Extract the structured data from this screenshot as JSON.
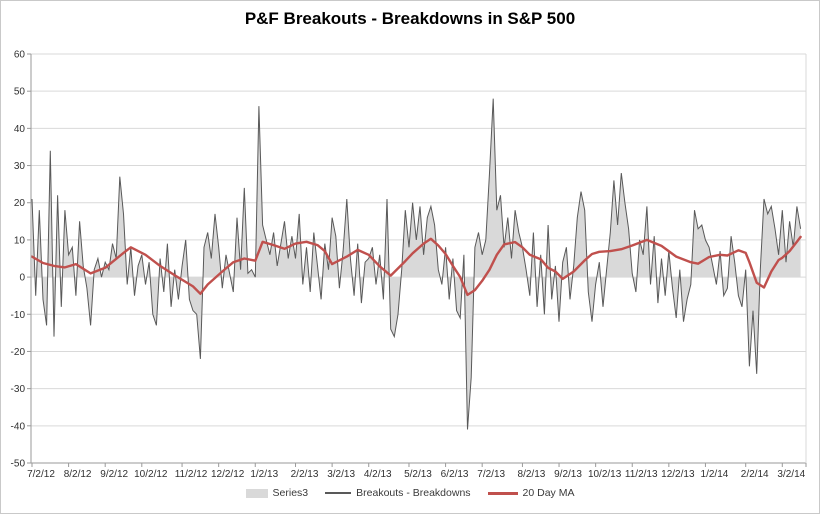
{
  "chart_data": {
    "type": "area+line",
    "title": "P&F Breakouts - Breakdowns in S&P 500",
    "xlabel": "",
    "ylabel": "",
    "ylim": [
      -50,
      60
    ],
    "y_ticks": [
      60,
      50,
      40,
      30,
      20,
      10,
      0,
      -10,
      -20,
      -30,
      -40,
      -50
    ],
    "grid": "horizontal",
    "legend_position": "bottom",
    "series_meta": [
      {
        "name": "Series3",
        "type": "area",
        "color": "#d9d9d9"
      },
      {
        "name": "Breakouts - Breakdowns",
        "type": "line",
        "color": "#595959",
        "width": 1
      },
      {
        "name": "20 Day MA",
        "type": "line",
        "color": "#c0504d",
        "width": 2.4
      }
    ],
    "x_tick_labels": [
      "7/2/12",
      "8/2/12",
      "9/2/12",
      "10/2/12",
      "11/2/12",
      "12/2/12",
      "1/2/13",
      "2/2/13",
      "3/2/13",
      "4/2/13",
      "5/2/13",
      "6/2/13",
      "7/2/13",
      "8/2/13",
      "9/2/13",
      "10/2/13",
      "11/2/13",
      "12/2/13",
      "1/2/14",
      "2/2/14",
      "3/2/14"
    ],
    "months": [
      {
        "label": "7/2/12",
        "values": [
          21,
          -5,
          18,
          -6,
          -13,
          34,
          -16,
          22,
          -8,
          18
        ]
      },
      {
        "label": "8/2/12",
        "values": [
          6,
          8,
          -5,
          15,
          3,
          -3,
          -13,
          2,
          5,
          0
        ]
      },
      {
        "label": "9/2/12",
        "values": [
          4,
          2,
          9,
          5,
          27,
          17,
          -2,
          8,
          -5,
          3
        ]
      },
      {
        "label": "10/2/12",
        "values": [
          6,
          -2,
          4,
          -10,
          -13,
          5,
          -4,
          9,
          -8,
          2,
          -6
        ]
      },
      {
        "label": "11/2/12",
        "values": [
          3,
          10,
          -6,
          -9,
          -10,
          -22,
          8,
          12,
          5,
          17
        ]
      },
      {
        "label": "12/2/12",
        "values": [
          8,
          -3,
          6,
          1,
          -4,
          16,
          2,
          24,
          1,
          2
        ]
      },
      {
        "label": "1/2/13",
        "values": [
          0,
          46,
          14,
          10,
          6,
          12,
          3,
          9,
          15,
          5,
          11
        ]
      },
      {
        "label": "2/2/13",
        "values": [
          5,
          17,
          -2,
          8,
          -4,
          12,
          3,
          -6,
          9,
          2
        ]
      },
      {
        "label": "3/2/13",
        "values": [
          16,
          11,
          -3,
          7,
          21,
          5,
          -5,
          9,
          -7,
          4
        ]
      },
      {
        "label": "4/2/13",
        "values": [
          5,
          8,
          -2,
          6,
          -6,
          21,
          -14,
          -16,
          -10,
          2,
          18
        ]
      },
      {
        "label": "5/2/13",
        "values": [
          8,
          20,
          10,
          19,
          6,
          16,
          19,
          14,
          2,
          -2
        ]
      },
      {
        "label": "6/2/13",
        "values": [
          8,
          -6,
          5,
          -9,
          -11,
          6,
          -41,
          -27,
          8,
          12
        ]
      },
      {
        "label": "7/2/13",
        "values": [
          6,
          10,
          28,
          48,
          18,
          22,
          8,
          16,
          5,
          18,
          12
        ]
      },
      {
        "label": "8/2/13",
        "values": [
          8,
          2,
          -5,
          12,
          -8,
          6,
          -10,
          14,
          -6,
          3
        ]
      },
      {
        "label": "9/2/13",
        "values": [
          -12,
          4,
          8,
          -6,
          3,
          16,
          23,
          18,
          -4,
          -12
        ]
      },
      {
        "label": "10/2/13",
        "values": [
          -2,
          4,
          -8,
          2,
          12,
          26,
          14,
          28,
          20,
          13
        ]
      },
      {
        "label": "11/2/13",
        "values": [
          1,
          -4,
          10,
          6,
          19,
          -2,
          11,
          -7,
          5,
          -5
        ]
      },
      {
        "label": "12/2/13",
        "values": [
          7,
          -3,
          -11,
          2,
          -12,
          -6,
          -2,
          18,
          13,
          14
        ]
      },
      {
        "label": "1/2/14",
        "values": [
          10,
          8,
          3,
          -2,
          7,
          -5,
          -3,
          11,
          4,
          -5,
          -8
        ]
      },
      {
        "label": "2/2/14",
        "values": [
          2,
          -24,
          -9,
          -26,
          2,
          21,
          17,
          19,
          13,
          6
        ]
      },
      {
        "label": "3/2/14",
        "values": [
          18,
          4,
          15,
          8,
          19,
          13
        ]
      }
    ],
    "ma_window": 20,
    "ma_anchors": [
      [
        0,
        5.5
      ],
      [
        3,
        3.8
      ],
      [
        6,
        3.0
      ],
      [
        9,
        2.6
      ],
      [
        12,
        3.5
      ],
      [
        16,
        1.0
      ],
      [
        20,
        2.5
      ],
      [
        25,
        6.5
      ],
      [
        27,
        8.0
      ],
      [
        31,
        6.0
      ],
      [
        35,
        3.0
      ],
      [
        39,
        0.5
      ],
      [
        44,
        -2.5
      ],
      [
        46,
        -4.5
      ],
      [
        48,
        -2.0
      ],
      [
        52,
        1.5
      ],
      [
        55,
        4.0
      ],
      [
        58,
        5.0
      ],
      [
        61,
        4.4
      ],
      [
        63,
        9.5
      ],
      [
        66,
        8.6
      ],
      [
        69,
        7.6
      ],
      [
        72,
        9.0
      ],
      [
        75,
        9.5
      ],
      [
        78,
        8.6
      ],
      [
        80,
        7.0
      ],
      [
        82,
        3.5
      ],
      [
        86,
        5.5
      ],
      [
        89,
        7.3
      ],
      [
        92,
        6.0
      ],
      [
        95,
        2.9
      ],
      [
        98,
        0.4
      ],
      [
        102,
        4.3
      ],
      [
        104,
        6.4
      ],
      [
        107,
        9.0
      ],
      [
        109,
        10.3
      ],
      [
        111,
        8.5
      ],
      [
        113,
        6.2
      ],
      [
        115,
        3.0
      ],
      [
        117,
        0.0
      ],
      [
        119,
        -4.8
      ],
      [
        121,
        -3.5
      ],
      [
        123,
        -1.0
      ],
      [
        125,
        2.0
      ],
      [
        127,
        6.0
      ],
      [
        129,
        8.8
      ],
      [
        132,
        9.4
      ],
      [
        134,
        8.0
      ],
      [
        136,
        6.0
      ],
      [
        139,
        4.8
      ],
      [
        141,
        2.5
      ],
      [
        143,
        1.5
      ],
      [
        145,
        -0.5
      ],
      [
        148,
        1.5
      ],
      [
        151,
        4.5
      ],
      [
        153,
        6.2
      ],
      [
        155,
        6.8
      ],
      [
        158,
        7.0
      ],
      [
        161,
        7.5
      ],
      [
        164,
        8.5
      ],
      [
        168,
        10.0
      ],
      [
        172,
        8.4
      ],
      [
        176,
        5.5
      ],
      [
        180,
        4.0
      ],
      [
        182,
        3.6
      ],
      [
        185,
        5.4
      ],
      [
        188,
        6.0
      ],
      [
        190,
        5.8
      ],
      [
        193,
        7.2
      ],
      [
        195,
        6.5
      ],
      [
        196,
        4.0
      ],
      [
        198,
        -1.5
      ],
      [
        200,
        -2.8
      ],
      [
        202,
        1.5
      ],
      [
        204,
        4.6
      ],
      [
        205,
        5.2
      ],
      [
        207,
        7.0
      ],
      [
        209,
        9.5
      ],
      [
        210,
        10.8
      ]
    ],
    "colors": {
      "gridline": "#d9d9d9",
      "axis": "#9a9a9a",
      "tick_text": "#303030",
      "background": "#ffffff",
      "border": "#c9c9c9"
    }
  }
}
